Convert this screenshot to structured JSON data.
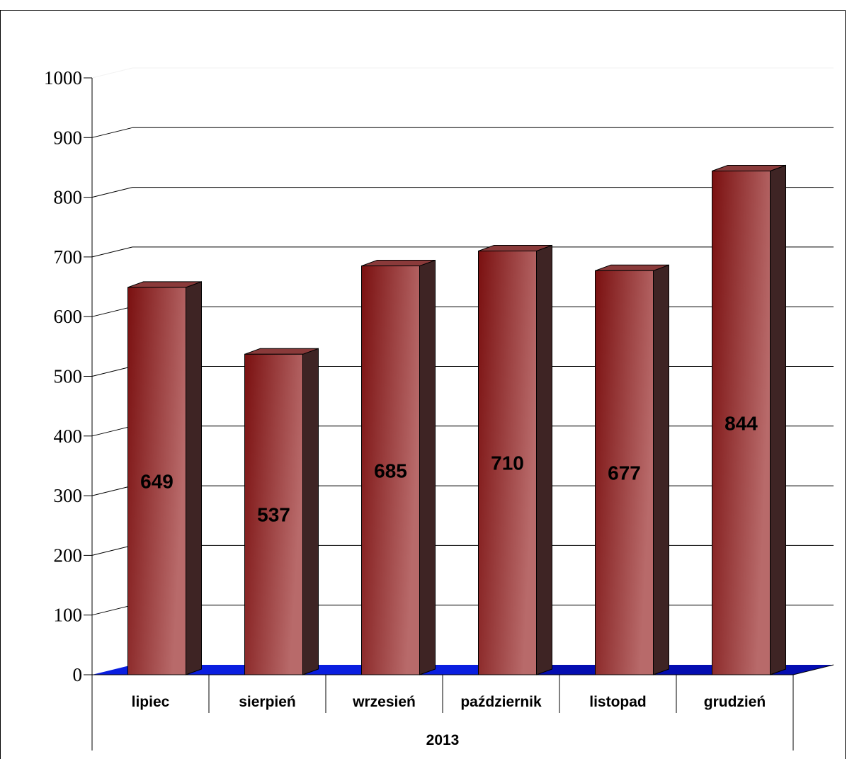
{
  "chart_data": {
    "type": "bar",
    "style": "3d-column",
    "categories": [
      "lipiec",
      "sierpień",
      "wrzesień",
      "październik",
      "listopad",
      "grudzień"
    ],
    "group_label": "2013",
    "values": [
      649,
      537,
      685,
      710,
      677,
      844
    ],
    "data_labels": [
      "649",
      "537",
      "685",
      "710",
      "677",
      "844"
    ],
    "yticks": [
      "0",
      "100",
      "200",
      "300",
      "400",
      "500",
      "600",
      "700",
      "800",
      "900",
      "1000"
    ],
    "ylim": [
      0,
      1000
    ],
    "grid": true,
    "legend": "none",
    "colors": {
      "bar_front_dark": "#7a1010",
      "bar_front_light": "#b86a6a",
      "bar_side": "#3e2424",
      "bar_top": "#8a3a3a",
      "floor": "#0a1ee0",
      "floor_edge": "#00008a"
    }
  }
}
